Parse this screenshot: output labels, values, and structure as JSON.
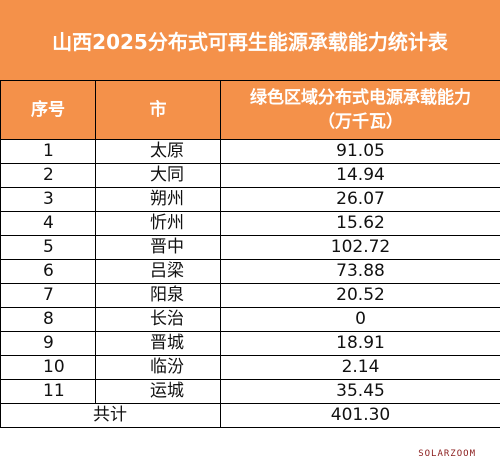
{
  "title": "山西2025分布式可再生能源承载能力统计表",
  "headers": {
    "index": "序号",
    "city": "市",
    "capacity_line1": "绿色区域分布式电源承载能力",
    "capacity_line2": "（万千瓦）"
  },
  "rows": [
    {
      "index": "1",
      "city": "太原",
      "value": "91.05"
    },
    {
      "index": "2",
      "city": "大同",
      "value": "14.94"
    },
    {
      "index": "3",
      "city": "朔州",
      "value": "26.07"
    },
    {
      "index": "4",
      "city": "忻州",
      "value": "15.62"
    },
    {
      "index": "5",
      "city": "晋中",
      "value": "102.72"
    },
    {
      "index": "6",
      "city": "吕梁",
      "value": "73.88"
    },
    {
      "index": "7",
      "city": "阳泉",
      "value": "20.52"
    },
    {
      "index": "8",
      "city": "长治",
      "value": "0"
    },
    {
      "index": "9",
      "city": "晋城",
      "value": "18.91"
    },
    {
      "index": "10",
      "city": "临汾",
      "value": "2.14"
    },
    {
      "index": "11",
      "city": "运城",
      "value": "35.45"
    }
  ],
  "total": {
    "label": "共计",
    "value": "401.30"
  },
  "watermark": "SOLARZOOM",
  "colors": {
    "header_bg": "#f4914a",
    "header_text": "#ffffff",
    "border": "#000000"
  }
}
